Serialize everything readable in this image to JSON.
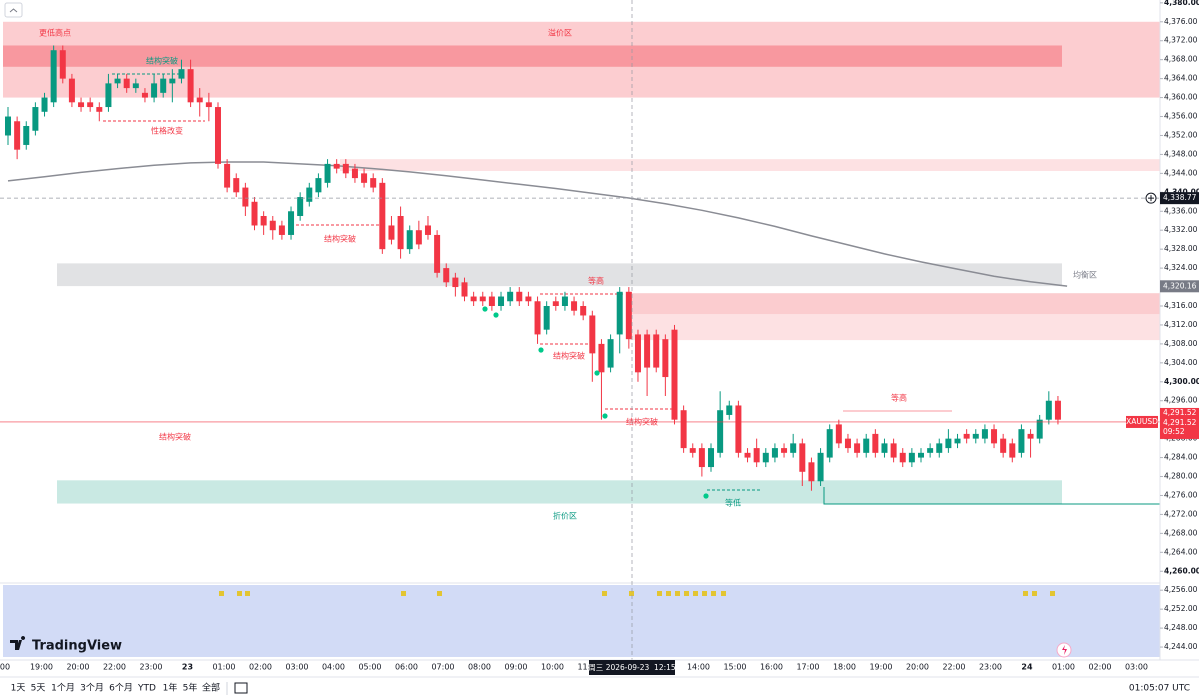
{
  "chart_data": {
    "type": "candlestick",
    "symbol": "XAUUSD",
    "up_color": "#089981",
    "down_color": "#f23645",
    "open": [
      4352,
      4355,
      4350,
      4353,
      4357,
      4359,
      4370,
      4364,
      4359,
      4359,
      4358,
      4358,
      4363,
      4364,
      4362,
      4361,
      4360,
      4361,
      4363,
      4364,
      4366,
      4360,
      4359,
      4358,
      4346,
      4343,
      4341,
      4338,
      4335,
      4334,
      4333,
      4331,
      4335,
      4338,
      4340,
      4342,
      4346,
      4346,
      4345,
      4344,
      4343,
      4342,
      4333,
      4335,
      4328,
      4332,
      4333,
      4331,
      4324,
      4322,
      4321,
      4318,
      4318,
      4318,
      4316,
      4317,
      4319,
      4318,
      4317,
      4311,
      4317,
      4316,
      4317,
      4316,
      4314,
      4308,
      4303,
      4310,
      4319,
      4310,
      4310,
      4310,
      4309,
      4311,
      4294,
      4286,
      4286,
      4282,
      4285,
      4293,
      4295,
      4285,
      4286,
      4283,
      4284,
      4286,
      4285,
      4287,
      4283,
      4279,
      4284,
      4291,
      4288,
      4287,
      4285,
      4289,
      4285,
      4287,
      4285,
      4283,
      4284,
      4285,
      4285,
      4286,
      4287,
      4289,
      4288,
      4288,
      4290,
      4288,
      4287,
      4285,
      4289,
      4288,
      4292,
      4296
    ],
    "high": [
      4358,
      4356,
      4355,
      4359,
      4361,
      4371,
      4371,
      4365,
      4360,
      4360,
      4359,
      4365,
      4365,
      4365,
      4364,
      4362,
      4365,
      4365,
      4366,
      4368,
      4368,
      4362,
      4361,
      4359,
      4347,
      4344,
      4342,
      4339,
      4336,
      4335,
      4334,
      4337,
      4340,
      4342,
      4344,
      4347,
      4347,
      4347,
      4346,
      4345,
      4344,
      4343,
      4335,
      4337,
      4333,
      4334,
      4335,
      4332,
      4325,
      4323,
      4322,
      4319,
      4319,
      4319,
      4319,
      4320,
      4320,
      4319,
      4318,
      4317,
      4318,
      4319,
      4318,
      4317,
      4315,
      4309,
      4310,
      4320,
      4320,
      4311,
      4311,
      4311,
      4310,
      4312,
      4295,
      4287,
      4287,
      4287,
      4298,
      4296,
      4296,
      4286,
      4288,
      4286,
      4287,
      4287,
      4289,
      4288,
      4284,
      4286,
      4291,
      4292,
      4289,
      4288,
      4289,
      4290,
      4288,
      4288,
      4286,
      4286,
      4286,
      4287,
      4288,
      4290,
      4289,
      4290,
      4290,
      4291,
      4291,
      4289,
      4288,
      4291,
      4290,
      4293,
      4298,
      4297
    ],
    "low": [
      4350,
      4347,
      4349,
      4352,
      4356,
      4358,
      4363,
      4358,
      4357,
      4357,
      4355,
      4357,
      4362,
      4361,
      4361,
      4359,
      4359,
      4360,
      4359,
      4363,
      4358,
      4356,
      4355,
      4345,
      4340,
      4339,
      4335,
      4332,
      4331,
      4330,
      4330,
      4330,
      4334,
      4337,
      4339,
      4341,
      4344,
      4343,
      4342,
      4341,
      4340,
      4327,
      4329,
      4326,
      4327,
      4328,
      4330,
      4322,
      4320,
      4318,
      4317,
      4316,
      4316,
      4315,
      4315,
      4316,
      4316,
      4316,
      4308,
      4310,
      4315,
      4315,
      4314,
      4313,
      4300,
      4292,
      4302,
      4306,
      4307,
      4300,
      4297,
      4302,
      4297,
      4291,
      4285,
      4284,
      4280,
      4281,
      4284,
      4292,
      4284,
      4283,
      4282,
      4282,
      4283,
      4284,
      4284,
      4278,
      4277,
      4278,
      4283,
      4286,
      4285,
      4284,
      4284,
      4284,
      4284,
      4283,
      4282,
      4282,
      4283,
      4284,
      4284,
      4285,
      4286,
      4287,
      4287,
      4287,
      4286,
      4284,
      4283,
      4284,
      4284,
      4287,
      4291,
      4291
    ],
    "close": [
      4356,
      4349,
      4354,
      4358,
      4360,
      4370,
      4364,
      4359,
      4358,
      4358,
      4357,
      4363,
      4364,
      4362,
      4363,
      4360,
      4363,
      4364,
      4364,
      4366,
      4359,
      4359,
      4358,
      4346,
      4341,
      4340,
      4337,
      4333,
      4333,
      4332,
      4331,
      4336,
      4339,
      4341,
      4343,
      4346,
      4345,
      4344,
      4343,
      4342,
      4341,
      4328,
      4330,
      4328,
      4332,
      4329,
      4331,
      4323,
      4321,
      4320,
      4318,
      4317,
      4317,
      4316,
      4318,
      4319,
      4317,
      4317,
      4310,
      4316,
      4316,
      4318,
      4315,
      4314,
      4306,
      4302,
      4309,
      4319,
      4309,
      4302,
      4303,
      4303,
      4301,
      4292,
      4286,
      4285,
      4282,
      4286,
      4294,
      4295,
      4285,
      4284,
      4283,
      4285,
      4286,
      4285,
      4287,
      4281,
      4279,
      4285,
      4290,
      4287,
      4286,
      4285,
      4288,
      4285,
      4287,
      4284,
      4283,
      4285,
      4285,
      4286,
      4287,
      4288,
      4288,
      4288,
      4289,
      4290,
      4287,
      4285,
      4284,
      4290,
      4288,
      4292,
      4296,
      4292
    ],
    "ma_color": "#8a8c94",
    "ma_values": [
      4342.4,
      4343.3,
      4344.2,
      4345.0,
      4345.7,
      4346.2,
      4346.4,
      4346.4,
      4346.0,
      4345.6,
      4345.0,
      4344.3,
      4343.5,
      4342.6,
      4341.7,
      4340.8,
      4339.8,
      4338.8,
      4337.6,
      4336.2,
      4334.6,
      4332.8,
      4330.8,
      4328.9,
      4327.0,
      4325.3,
      4323.8,
      4322.3,
      4321.1,
      4320.2
    ],
    "ylim": [
      4241.9,
      4380.6
    ],
    "yticks": [
      {
        "value": 4380,
        "label": "4,380.00"
      },
      {
        "value": 4376,
        "label": "4,376.00"
      },
      {
        "value": 4372,
        "label": "4,372.00"
      },
      {
        "value": 4368,
        "label": "4,368.00"
      },
      {
        "value": 4364,
        "label": "4,364.00"
      },
      {
        "value": 4360,
        "label": "4,360.00"
      },
      {
        "value": 4356,
        "label": "4,356.00"
      },
      {
        "value": 4352,
        "label": "4,352.00"
      },
      {
        "value": 4348,
        "label": "4,348.00"
      },
      {
        "value": 4344,
        "label": "4,344.00"
      },
      {
        "value": 4340,
        "label": "4,340.00"
      },
      {
        "value": 4336,
        "label": "4,336.00"
      },
      {
        "value": 4332,
        "label": "4,332.00"
      },
      {
        "value": 4328,
        "label": "4,328.00"
      },
      {
        "value": 4324,
        "label": "4,324.00"
      },
      {
        "value": 4320,
        "label": "4,320.00"
      },
      {
        "value": 4316,
        "label": "4,316.00"
      },
      {
        "value": 4312,
        "label": "4,312.00"
      },
      {
        "value": 4308,
        "label": "4,308.00"
      },
      {
        "value": 4304,
        "label": "4,304.00"
      },
      {
        "value": 4300,
        "label": "4,300.00"
      },
      {
        "value": 4296,
        "label": "4,296.00"
      },
      {
        "value": 4292,
        "label": "4,292.00"
      },
      {
        "value": 4288,
        "label": "4,288.00"
      },
      {
        "value": 4284,
        "label": "4,284.00"
      },
      {
        "value": 4280,
        "label": "4,280.00"
      },
      {
        "value": 4276,
        "label": "4,276.00"
      },
      {
        "value": 4272,
        "label": "4,272.00"
      },
      {
        "value": 4268,
        "label": "4,268.00"
      },
      {
        "value": 4264,
        "label": "4,264.00"
      },
      {
        "value": 4260,
        "label": "4,260.00"
      },
      {
        "value": 4256,
        "label": "4,256.00"
      },
      {
        "value": 4252,
        "label": "4,252.00"
      },
      {
        "value": 4248,
        "label": "4,248.00"
      },
      {
        "value": 4244,
        "label": "4,244.00"
      }
    ],
    "x_labels": [
      "00",
      "19:00",
      "20:00",
      "22:00",
      "23:00",
      "23",
      "01:00",
      "02:00",
      "03:00",
      "04:00",
      "05:00",
      "06:00",
      "07:00",
      "08:00",
      "09:00",
      "10:00",
      "11:00",
      null,
      null,
      "14:00",
      "15:00",
      "16:00",
      "17:00",
      "18:00",
      "19:00",
      "20:00",
      "22:00",
      "23:00",
      "24",
      "01:00",
      "02:00",
      "03:00"
    ],
    "last_price": {
      "value": 4291.52,
      "label": "4,291.52"
    },
    "countdown": "09:52",
    "crosshair_price": {
      "value": 4338.77,
      "label": "4,338.77"
    },
    "crosshair_time": "周三 2026-09-23  12:15",
    "ma_last": {
      "value": 4320.16,
      "label": "4,320.16"
    },
    "zones": [
      {
        "label": "溢价区",
        "top": 4376,
        "bottom": 4360,
        "color": "rgba(242,54,69,0.25)"
      },
      {
        "top": 4371,
        "bottom": 4366.5,
        "color": "rgba(242,54,69,0.35)"
      },
      {
        "top": 4347,
        "bottom": 4344.5,
        "color": "rgba(242,54,69,0.15)"
      },
      {
        "label": "均衡区",
        "top": 4325,
        "bottom": 4320.2,
        "color": "rgba(120,123,134,0.22)"
      },
      {
        "top": 4318.7,
        "bottom": 4308.8,
        "color": "rgba(242,54,69,0.15)"
      },
      {
        "top": 4318.7,
        "bottom": 4314.3,
        "color": "rgba(242,54,69,0.12)"
      },
      {
        "label": "折价区",
        "top": 4279.2,
        "bottom": 4274.3,
        "color": "rgba(8,153,129,0.22)"
      }
    ],
    "annotations": [
      "更低高点",
      "结构突破",
      "性格改变",
      "结构突破",
      "等高",
      "结构突破",
      "结构突破",
      "等低",
      "结构突破",
      "等高"
    ]
  },
  "logo": "TradingView",
  "toolbar": {
    "ranges": [
      "1天",
      "5天",
      "1个月",
      "3个月",
      "6个月",
      "YTD",
      "1年",
      "5年",
      "全部"
    ],
    "clock": "01:05:07 UTC"
  }
}
